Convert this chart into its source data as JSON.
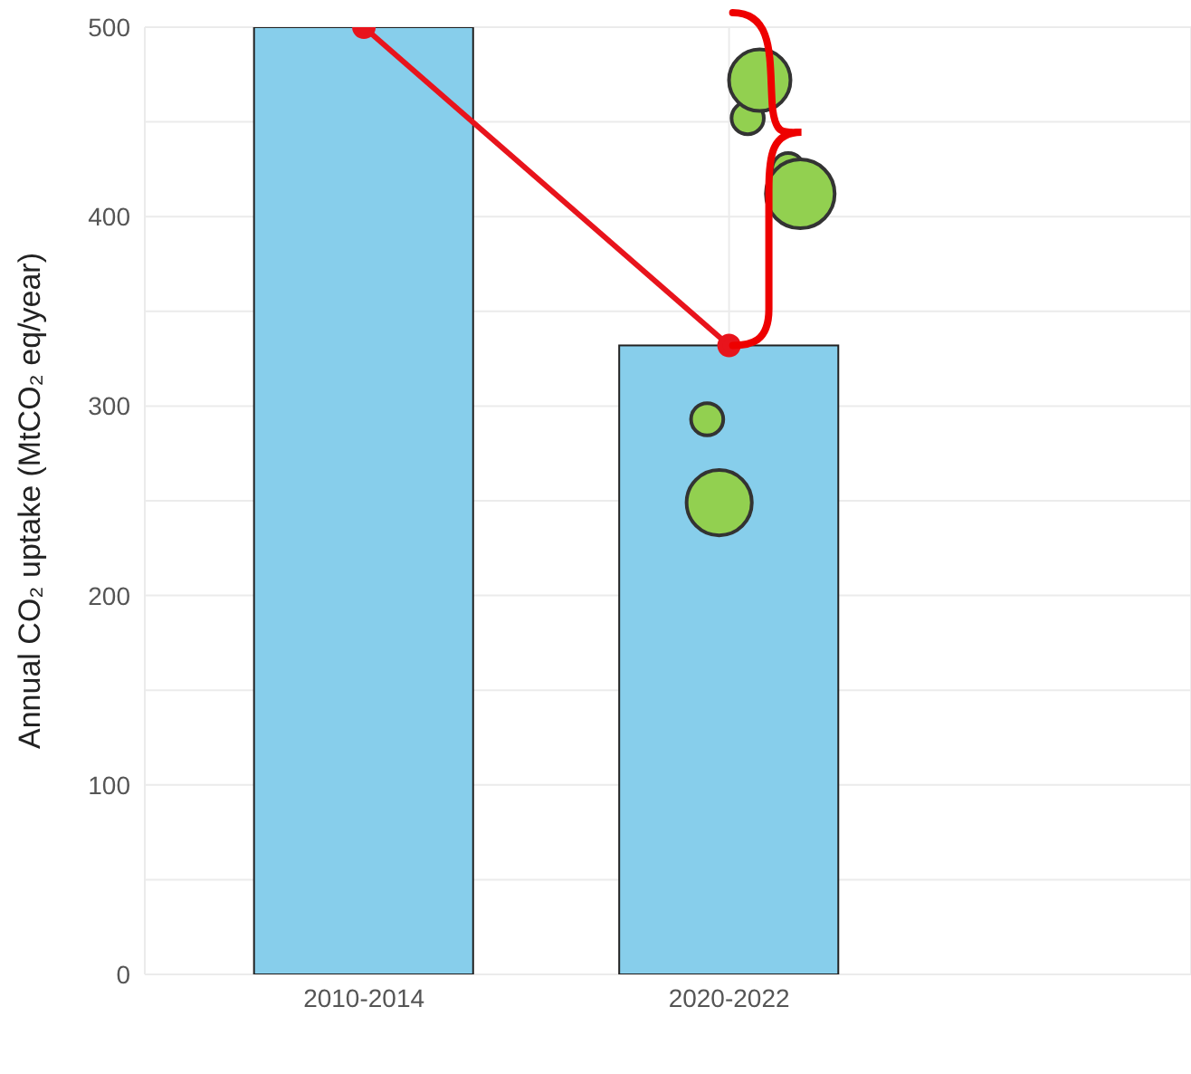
{
  "chart_data": {
    "type": "bar",
    "ylabel": "Annual CO₂ uptake (MtCO₂ eq/year)",
    "categories": [
      "2010-2014",
      "2020-2022"
    ],
    "ylim": [
      0,
      500
    ],
    "yticks": [
      0,
      {
        "value": 50,
        "label": null
      },
      100,
      {
        "value": 150,
        "label": null
      },
      200,
      {
        "value": 250,
        "label": null
      },
      300,
      {
        "value": 350,
        "label": null
      },
      400,
      {
        "value": 450,
        "label": null
      },
      500
    ],
    "grid": true,
    "series": [
      {
        "color": "#87ceeb",
        "values": [
          500,
          332
        ]
      },
      {
        "type": "line",
        "color": "#e8141c",
        "values": [
          500,
          332
        ],
        "marker": "circle"
      },
      {
        "type": "bubble",
        "color": "#92d050",
        "x": [
          "2020-2022",
          "2020-2022",
          "2020-2022",
          "2020-2022",
          "2020-2022",
          "2020-2022"
        ],
        "values": [
          293,
          452,
          425,
          249,
          472,
          412
        ],
        "sizes": [
          0.22,
          0.22,
          0.22,
          0.9,
          0.8,
          1
        ]
      }
    ]
  }
}
